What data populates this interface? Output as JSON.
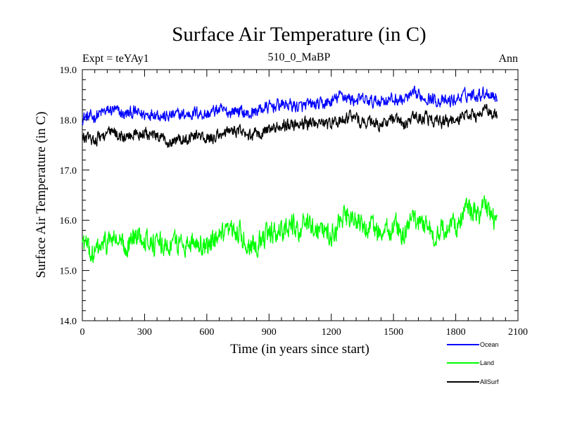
{
  "chart_data": {
    "type": "line",
    "title": "Surface Air Temperature (in C)",
    "subtitle_left": "Expt = teYAy1",
    "subtitle_center": "510_0_MaBP",
    "subtitle_right": "Ann",
    "xlabel": "Time (in years since start)",
    "ylabel": "Surface Air Temperature (in C)",
    "xlim": [
      0,
      2100
    ],
    "ylim": [
      14.0,
      19.0
    ],
    "xticks": [
      0,
      300,
      600,
      900,
      1200,
      1500,
      1800,
      2100
    ],
    "xtick_labels": [
      "0",
      "300",
      "600",
      "900",
      "1200",
      "1500",
      "1800",
      "2100"
    ],
    "yticks": [
      14.0,
      15.0,
      16.0,
      17.0,
      18.0,
      19.0
    ],
    "ytick_labels": [
      "14.0",
      "15.0",
      "16.0",
      "17.0",
      "18.0",
      "19.0"
    ],
    "legend_position": "bottom-right, below plot",
    "series": [
      {
        "name": "Ocean",
        "color": "#0000ff",
        "x": [
          0,
          50,
          100,
          150,
          200,
          250,
          300,
          350,
          400,
          450,
          500,
          550,
          600,
          650,
          700,
          750,
          800,
          850,
          900,
          950,
          1000,
          1050,
          1100,
          1150,
          1200,
          1250,
          1300,
          1350,
          1400,
          1450,
          1500,
          1550,
          1600,
          1650,
          1700,
          1750,
          1800,
          1850,
          1900,
          1950,
          2000
        ],
        "values": [
          18.05,
          18.05,
          18.15,
          18.2,
          18.1,
          18.15,
          18.1,
          18.15,
          18.05,
          18.1,
          18.1,
          18.15,
          18.1,
          18.2,
          18.15,
          18.2,
          18.1,
          18.2,
          18.25,
          18.3,
          18.3,
          18.25,
          18.3,
          18.3,
          18.35,
          18.5,
          18.4,
          18.4,
          18.35,
          18.4,
          18.4,
          18.4,
          18.5,
          18.45,
          18.4,
          18.35,
          18.4,
          18.5,
          18.5,
          18.55,
          18.45
        ]
      },
      {
        "name": "Land",
        "color": "#00ff00",
        "x": [
          0,
          50,
          100,
          150,
          200,
          250,
          300,
          350,
          400,
          450,
          500,
          550,
          600,
          650,
          700,
          750,
          800,
          850,
          900,
          950,
          1000,
          1050,
          1100,
          1150,
          1200,
          1250,
          1300,
          1350,
          1400,
          1450,
          1500,
          1550,
          1600,
          1650,
          1700,
          1750,
          1800,
          1850,
          1900,
          1950,
          2000
        ],
        "values": [
          15.6,
          15.3,
          15.5,
          15.65,
          15.45,
          15.65,
          15.7,
          15.5,
          15.5,
          15.55,
          15.55,
          15.6,
          15.45,
          15.6,
          15.7,
          15.8,
          15.5,
          15.6,
          15.7,
          15.8,
          15.9,
          15.85,
          15.9,
          15.85,
          15.7,
          16.0,
          16.05,
          15.85,
          15.85,
          15.7,
          15.9,
          15.75,
          16.0,
          15.95,
          15.7,
          15.85,
          15.9,
          16.2,
          16.15,
          16.2,
          16.0
        ]
      },
      {
        "name": "AllSurf",
        "color": "#000000",
        "x": [
          0,
          50,
          100,
          150,
          200,
          250,
          300,
          350,
          400,
          450,
          500,
          550,
          600,
          650,
          700,
          750,
          800,
          850,
          900,
          950,
          1000,
          1050,
          1100,
          1150,
          1200,
          1250,
          1300,
          1350,
          1400,
          1450,
          1500,
          1550,
          1600,
          1650,
          1700,
          1750,
          1800,
          1850,
          1900,
          1950,
          2000
        ],
        "values": [
          17.65,
          17.6,
          17.7,
          17.75,
          17.65,
          17.7,
          17.75,
          17.65,
          17.6,
          17.6,
          17.65,
          17.7,
          17.6,
          17.7,
          17.75,
          17.8,
          17.65,
          17.75,
          17.8,
          17.85,
          17.95,
          17.9,
          17.95,
          17.95,
          17.9,
          18.0,
          18.05,
          17.95,
          17.95,
          17.9,
          18.0,
          17.9,
          18.05,
          18.05,
          17.95,
          17.95,
          18.0,
          18.15,
          18.1,
          18.2,
          18.05
        ]
      }
    ]
  }
}
